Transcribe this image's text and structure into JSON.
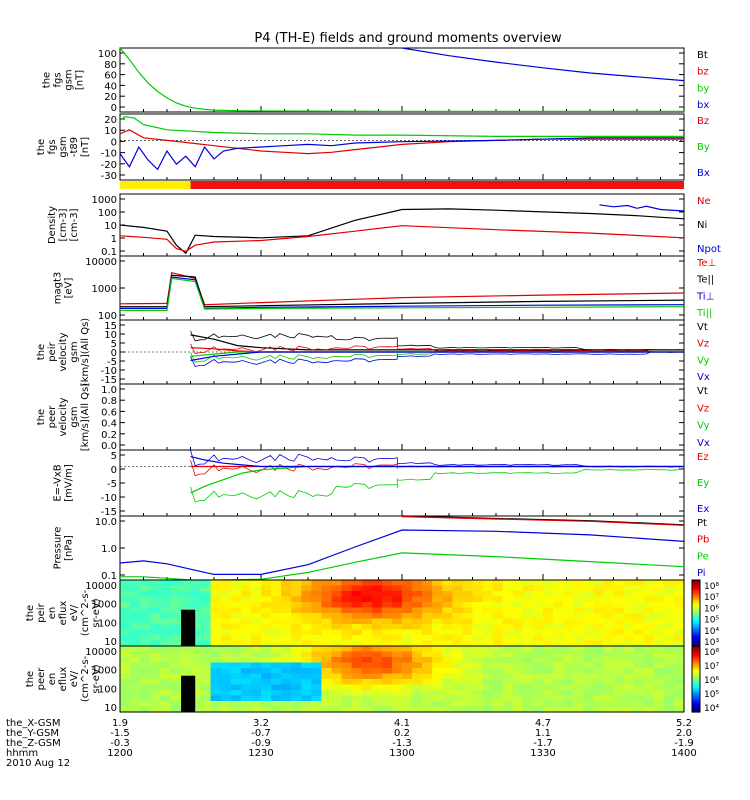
{
  "title": "P4 (TH-E) fields and ground moments overview",
  "colors": {
    "black": "#000000",
    "red": "#e00000",
    "green": "#00cc00",
    "blue": "#0000dd",
    "yellow": "#ffee00",
    "bar_red": "#ee1111"
  },
  "chart_data": [
    {
      "id": "fgs-magnitude",
      "type": "line",
      "ylabel_lines": [
        "the",
        "fgs",
        "gsm",
        "[nT]"
      ],
      "ylim": [
        0,
        100
      ],
      "yticks": [
        "100",
        "80",
        "60",
        "40",
        "20",
        "0"
      ],
      "legend": [
        "Bt",
        "bz",
        "by",
        "bx"
      ],
      "legend_colors": [
        "black",
        "red",
        "green",
        "blue"
      ],
      "series": [
        {
          "name": "by",
          "color": "green",
          "t": [
            1200,
            1202,
            1204,
            1206,
            1208,
            1210,
            1212,
            1214,
            1216,
            1218,
            1220,
            1225,
            1230,
            1300,
            1400
          ],
          "y": [
            100,
            82,
            62,
            45,
            32,
            22,
            14,
            9,
            6,
            4,
            3,
            2,
            1.5,
            1,
            1
          ]
        },
        {
          "name": "bx",
          "color": "blue",
          "t": [
            1300,
            1310,
            1320,
            1330,
            1340,
            1350,
            1400
          ],
          "y": [
            100,
            88,
            78,
            69,
            61,
            55,
            49
          ]
        }
      ]
    },
    {
      "id": "fgs-components",
      "type": "line",
      "ylabel_lines": [
        "the",
        "fgs",
        "gsm",
        "-t89",
        "[nT]"
      ],
      "ylim": [
        -30,
        20
      ],
      "yticks": [
        "20",
        "10",
        "0",
        "-10",
        "-20",
        "-30"
      ],
      "legend": [
        "Bz",
        "By",
        "Bx"
      ],
      "legend_colors": [
        "red",
        "green",
        "blue"
      ],
      "series": [
        {
          "name": "Bz",
          "color": "red",
          "t": [
            1200,
            1202,
            1205,
            1210,
            1215,
            1220,
            1225,
            1230,
            1235,
            1240,
            1245,
            1250,
            1300,
            1310,
            1320,
            1330,
            1340,
            1400
          ],
          "y": [
            5,
            8,
            2,
            0,
            -2,
            -4,
            -6,
            -8,
            -9,
            -10,
            -9,
            -7,
            -3,
            -1,
            0,
            1,
            1,
            1
          ]
        },
        {
          "name": "By",
          "color": "green",
          "t": [
            1200,
            1201,
            1203,
            1205,
            1210,
            1220,
            1230,
            1240,
            1250,
            1300,
            1320,
            1340,
            1400
          ],
          "y": [
            15,
            18,
            17,
            12,
            8,
            6,
            5,
            5,
            4,
            4,
            3,
            3,
            3
          ]
        },
        {
          "name": "Bx",
          "color": "blue",
          "t": [
            1200,
            1202,
            1204,
            1206,
            1208,
            1210,
            1212,
            1214,
            1216,
            1218,
            1220,
            1222,
            1225,
            1230,
            1235,
            1240,
            1245,
            1250,
            1300,
            1320,
            1340,
            1400
          ],
          "y": [
            -10,
            -20,
            -5,
            -15,
            -22,
            -8,
            -18,
            -12,
            -20,
            -5,
            -14,
            -8,
            -6,
            -5,
            -4,
            -3,
            -4,
            -2,
            -1,
            0,
            2,
            2
          ]
        }
      ]
    },
    {
      "id": "density",
      "type": "line",
      "yscale": "log",
      "ylabel_lines": [
        "Density",
        "[cm-3]",
        "[cm-3]"
      ],
      "ylim": [
        0.1,
        1000
      ],
      "yticks": [
        "1000",
        "100",
        "10",
        "1",
        "0.1"
      ],
      "legend": [
        "Ne",
        "Ni",
        "Npot"
      ],
      "legend_colors": [
        "red",
        "black",
        "blue"
      ],
      "series": [
        {
          "name": "Ni",
          "color": "black",
          "t": [
            1200,
            1205,
            1210,
            1212,
            1214,
            1216,
            1220,
            1230,
            1240,
            1250,
            1300,
            1310,
            1320,
            1330,
            1340,
            1350,
            1400
          ],
          "y": [
            10,
            7,
            4,
            0.5,
            0.15,
            2.2,
            1.8,
            1.5,
            2,
            20,
            100,
            110,
            90,
            70,
            55,
            40,
            25
          ]
        },
        {
          "name": "Ne",
          "color": "red",
          "t": [
            1200,
            1205,
            1210,
            1212,
            1214,
            1216,
            1220,
            1230,
            1240,
            1250,
            1300,
            1320,
            1340,
            1400
          ],
          "y": [
            2,
            1.6,
            1.2,
            0.3,
            0.2,
            0.5,
            0.8,
            1.0,
            1.8,
            4,
            9,
            5,
            3,
            1.5
          ]
        },
        {
          "name": "Npot",
          "color": "blue",
          "t": [
            1342,
            1345,
            1348,
            1350,
            1352,
            1355,
            1400
          ],
          "y": [
            200,
            150,
            180,
            120,
            160,
            100,
            80
          ]
        }
      ]
    },
    {
      "id": "temperature",
      "type": "line",
      "yscale": "log",
      "ylabel_lines": [
        "magt3",
        "[eV]"
      ],
      "ylim": [
        100,
        10000
      ],
      "yticks": [
        "10000",
        "1000",
        "100"
      ],
      "legend": [
        "Te⊥",
        "Te||",
        "Ti⊥",
        "Ti||"
      ],
      "legend_colors": [
        "red",
        "black",
        "blue",
        "green"
      ],
      "series": [
        {
          "name": "Te⊥",
          "color": "red",
          "t": [
            1200,
            1210,
            1211,
            1216,
            1218,
            1230,
            1300,
            1330,
            1400
          ],
          "y": [
            320,
            330,
            3000,
            2000,
            300,
            350,
            500,
            600,
            700
          ]
        },
        {
          "name": "Te||",
          "color": "black",
          "t": [
            1200,
            1210,
            1211,
            1216,
            1218,
            1230,
            1300,
            1330,
            1400
          ],
          "y": [
            260,
            260,
            2500,
            2200,
            260,
            280,
            330,
            380,
            420
          ]
        },
        {
          "name": "Ti⊥",
          "color": "blue",
          "t": [
            1200,
            1210,
            1211,
            1216,
            1218,
            1230,
            1300,
            1330,
            1400
          ],
          "y": [
            230,
            230,
            2200,
            1800,
            230,
            250,
            270,
            290,
            300
          ]
        },
        {
          "name": "Ti||",
          "color": "green",
          "t": [
            1200,
            1210,
            1211,
            1216,
            1218,
            1230,
            1300,
            1330,
            1400
          ],
          "y": [
            200,
            200,
            2000,
            1600,
            220,
            230,
            240,
            250,
            260
          ]
        }
      ]
    },
    {
      "id": "peir-velocity",
      "type": "line",
      "ylabel_lines": [
        "the",
        "peir",
        "velocity",
        "gsm",
        "[km/s](All Qs)"
      ],
      "ylim": [
        -15,
        15
      ],
      "yticks": [
        "15",
        "10",
        "5",
        "0",
        "-5",
        "-10",
        "-15"
      ],
      "legend": [
        "Vt",
        "Vz",
        "Vy",
        "Vx"
      ],
      "legend_colors": [
        "black",
        "red",
        "green",
        "blue"
      ],
      "series": [
        {
          "name": "Vt",
          "color": "black",
          "t": [
            1215,
            1220,
            1225,
            1230,
            1240,
            1300,
            1400
          ],
          "y": [
            8,
            6,
            3,
            2,
            1,
            1,
            1
          ]
        },
        {
          "name": "Vz",
          "color": "red",
          "t": [
            1215,
            1220,
            1225,
            1230,
            1400
          ],
          "y": [
            2,
            1.5,
            0.5,
            0,
            0
          ]
        },
        {
          "name": "Vy",
          "color": "green",
          "t": [
            1215,
            1220,
            1225,
            1230,
            1400
          ],
          "y": [
            -2,
            -1,
            0,
            0,
            0
          ]
        },
        {
          "name": "Vx",
          "color": "blue",
          "t": [
            1215,
            1220,
            1225,
            1230,
            1400
          ],
          "y": [
            -4,
            -2,
            -1,
            0,
            0
          ]
        }
      ]
    },
    {
      "id": "peer-velocity",
      "type": "line",
      "ylabel_lines": [
        "the",
        "peer",
        "velocity",
        "gsm",
        "[km/s](All Qs)"
      ],
      "ylim": [
        0,
        1
      ],
      "yticks": [
        "1.0",
        "0.8",
        "0.6",
        "0.4",
        "0.2",
        "0.0"
      ],
      "legend": [
        "Vt",
        "Vz",
        "Vy",
        "Vx"
      ],
      "legend_colors": [
        "black",
        "red",
        "green",
        "blue"
      ],
      "series": []
    },
    {
      "id": "e-field",
      "type": "line",
      "ylabel_lines": [
        "E=-VxB",
        "[mV/m]"
      ],
      "ylim": [
        -15,
        5
      ],
      "yticks": [
        "5",
        "0",
        "-5",
        "-10",
        "-15"
      ],
      "legend": [
        "Ez",
        "Ey",
        "Ex"
      ],
      "legend_colors": [
        "red",
        "green",
        "blue"
      ],
      "series": [
        {
          "name": "Ez",
          "color": "red",
          "t": [
            1215,
            1400
          ],
          "y": [
            0,
            0
          ]
        },
        {
          "name": "Ey",
          "color": "green",
          "t": [
            1215,
            1218,
            1222,
            1226,
            1230,
            1240,
            1400
          ],
          "y": [
            -8,
            -6,
            -4,
            -2,
            -1,
            0,
            0
          ]
        },
        {
          "name": "Ex",
          "color": "blue",
          "t": [
            1215,
            1218,
            1222,
            1226,
            1230,
            1240,
            1400
          ],
          "y": [
            3,
            2,
            1,
            0.5,
            0,
            0,
            0
          ]
        }
      ]
    },
    {
      "id": "pressure",
      "type": "line",
      "yscale": "log",
      "ylabel_lines": [
        "Pressure",
        "[nPa]"
      ],
      "ylim": [
        0.03,
        10
      ],
      "yticks": [
        "10.0",
        "1.0",
        "0.1"
      ],
      "legend": [
        "Pt",
        "Pb",
        "Pe",
        "Pi"
      ],
      "legend_colors": [
        "black",
        "red",
        "green",
        "blue"
      ],
      "series": [
        {
          "name": "Pt",
          "color": "black",
          "t": [
            1300,
            1320,
            1340,
            1400
          ],
          "y": [
            10,
            8,
            6.5,
            4.5
          ]
        },
        {
          "name": "Pb",
          "color": "red",
          "t": [
            1300,
            1320,
            1340,
            1400
          ],
          "y": [
            9.5,
            7.6,
            6.2,
            4.3
          ]
        },
        {
          "name": "Pi",
          "color": "blue",
          "t": [
            1200,
            1205,
            1210,
            1215,
            1220,
            1230,
            1240,
            1250,
            1300,
            1320,
            1340,
            1400
          ],
          "y": [
            0.14,
            0.17,
            0.13,
            0.08,
            0.05,
            0.05,
            0.12,
            0.6,
            2.8,
            2.5,
            1.8,
            1.0
          ]
        },
        {
          "name": "Pe",
          "color": "green",
          "t": [
            1200,
            1205,
            1210,
            1215,
            1220,
            1230,
            1240,
            1250,
            1300,
            1320,
            1340,
            1400
          ],
          "y": [
            0.04,
            0.04,
            0.035,
            0.03,
            0.03,
            0.032,
            0.06,
            0.15,
            0.35,
            0.25,
            0.16,
            0.1
          ]
        }
      ]
    },
    {
      "id": "peir-spectrogram",
      "type": "heatmap",
      "ylabel_lines": [
        "the",
        "peir",
        "en",
        "eflux",
        "eV/",
        "(cm^2-s-",
        "sr-eV)"
      ],
      "yticks": [
        "10000",
        "1000",
        "100",
        "10"
      ],
      "colorbar_ticks": [
        "10⁸",
        "10⁷",
        "10⁶",
        "10⁵",
        "10⁴",
        "10³"
      ]
    },
    {
      "id": "peer-spectrogram",
      "type": "heatmap",
      "ylabel_lines": [
        "the",
        "peer",
        "en",
        "eflux",
        "eV/",
        "(cm^2-s-",
        "sr-eV)"
      ],
      "yticks": [
        "10000",
        "1000",
        "100",
        "10"
      ],
      "colorbar_ticks": [
        "10⁸",
        "10⁷",
        "10⁶",
        "10⁵",
        "10⁴"
      ]
    }
  ],
  "bottom_axis": {
    "rows": [
      {
        "label": "the_X-GSM",
        "values": [
          "1.9",
          "3.2",
          "4.1",
          "4.7",
          "5.2"
        ]
      },
      {
        "label": "the_Y-GSM",
        "values": [
          "-1.5",
          "-0.7",
          "0.2",
          "1.1",
          "2.0"
        ]
      },
      {
        "label": "the_Z-GSM",
        "values": [
          "-0.3",
          "-0.9",
          "-1.3",
          "-1.7",
          "-1.9"
        ]
      },
      {
        "label": "hhmm",
        "values": [
          "1200",
          "1230",
          "1300",
          "1330",
          "1400"
        ]
      }
    ],
    "date": "2010 Aug 12"
  }
}
